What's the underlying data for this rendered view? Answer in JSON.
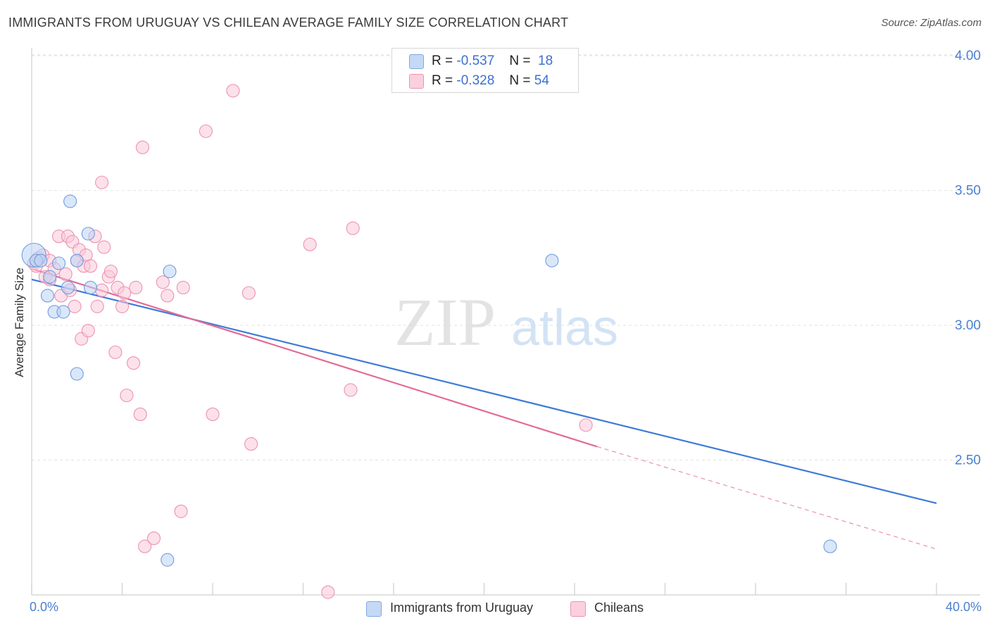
{
  "title": "IMMIGRANTS FROM URUGUAY VS CHILEAN AVERAGE FAMILY SIZE CORRELATION CHART",
  "source": "Source: ZipAtlas.com",
  "watermark": {
    "zip": "ZIP",
    "atlas": "atlas"
  },
  "legend": {
    "r_label": "R =",
    "n_label": "N =",
    "rows": [
      {
        "r": "-0.537",
        "n": "18",
        "color": "#a9c6f1"
      },
      {
        "r": "-0.328",
        "n": "54",
        "color": "#f6b6c9"
      }
    ]
  },
  "colors": {
    "blue_line": "#3d7bd8",
    "pink_line": "#e36b96",
    "blue_fill": "#a9c6f1",
    "pink_fill": "#f6b6c9",
    "axis_label": "#4a7fd0"
  },
  "chart_data": {
    "type": "scatter",
    "title": "IMMIGRANTS FROM URUGUAY VS CHILEAN AVERAGE FAMILY SIZE CORRELATION CHART",
    "xlabel": "",
    "ylabel": "Average Family Size",
    "x_tick_labels": [
      "0.0%",
      "40.0%"
    ],
    "y_tick_labels": [
      "2.50",
      "3.00",
      "3.50",
      "4.00"
    ],
    "xlim": [
      0,
      40
    ],
    "ylim": [
      2.0,
      4.05
    ],
    "y_ticks": [
      2.5,
      3.0,
      3.5,
      4.0
    ],
    "grid": true,
    "legend_position": "top-center",
    "series": [
      {
        "name": "Immigrants from Uruguay",
        "color": "#a9c6f1",
        "points": [
          [
            0.1,
            3.26
          ],
          [
            0.2,
            3.24
          ],
          [
            0.4,
            3.24
          ],
          [
            0.7,
            3.11
          ],
          [
            0.8,
            3.18
          ],
          [
            1.0,
            3.05
          ],
          [
            1.2,
            3.23
          ],
          [
            1.4,
            3.05
          ],
          [
            1.6,
            3.14
          ],
          [
            1.7,
            3.46
          ],
          [
            2.0,
            3.24
          ],
          [
            2.0,
            2.82
          ],
          [
            2.5,
            3.34
          ],
          [
            2.6,
            3.14
          ],
          [
            6.0,
            2.13
          ],
          [
            6.1,
            3.2
          ],
          [
            23.0,
            3.24
          ],
          [
            35.3,
            2.18
          ]
        ],
        "trend": {
          "x1": 0,
          "y1": 3.17,
          "x2": 40,
          "y2": 2.34
        }
      },
      {
        "name": "Chileans",
        "color": "#f6b6c9",
        "points": [
          [
            0.1,
            3.23
          ],
          [
            0.2,
            3.22
          ],
          [
            0.3,
            3.25
          ],
          [
            0.5,
            3.26
          ],
          [
            0.6,
            3.18
          ],
          [
            0.8,
            3.24
          ],
          [
            0.8,
            3.17
          ],
          [
            1.0,
            3.21
          ],
          [
            1.2,
            3.33
          ],
          [
            1.3,
            3.11
          ],
          [
            1.5,
            3.19
          ],
          [
            1.6,
            3.33
          ],
          [
            1.7,
            3.13
          ],
          [
            1.8,
            3.31
          ],
          [
            1.9,
            3.07
          ],
          [
            2.0,
            3.24
          ],
          [
            2.1,
            3.28
          ],
          [
            2.2,
            2.95
          ],
          [
            2.3,
            3.22
          ],
          [
            2.4,
            3.26
          ],
          [
            2.5,
            2.98
          ],
          [
            2.6,
            3.22
          ],
          [
            2.8,
            3.33
          ],
          [
            2.9,
            3.07
          ],
          [
            3.1,
            3.13
          ],
          [
            3.1,
            3.53
          ],
          [
            3.2,
            3.29
          ],
          [
            3.4,
            3.18
          ],
          [
            3.5,
            3.2
          ],
          [
            3.7,
            2.9
          ],
          [
            3.8,
            3.14
          ],
          [
            4.0,
            3.07
          ],
          [
            4.1,
            3.12
          ],
          [
            4.2,
            2.74
          ],
          [
            4.5,
            2.86
          ],
          [
            4.6,
            3.14
          ],
          [
            4.8,
            2.67
          ],
          [
            4.9,
            3.66
          ],
          [
            5.0,
            2.18
          ],
          [
            5.4,
            2.21
          ],
          [
            5.8,
            3.16
          ],
          [
            6.0,
            3.11
          ],
          [
            6.6,
            2.31
          ],
          [
            6.7,
            3.14
          ],
          [
            7.7,
            3.72
          ],
          [
            8.0,
            2.67
          ],
          [
            8.9,
            3.87
          ],
          [
            9.6,
            3.12
          ],
          [
            9.7,
            2.56
          ],
          [
            12.3,
            3.3
          ],
          [
            13.1,
            2.01
          ],
          [
            14.1,
            2.76
          ],
          [
            14.2,
            3.36
          ],
          [
            24.5,
            2.63
          ]
        ],
        "trend": {
          "x1": 0,
          "y1": 3.21,
          "x2": 25,
          "y2": 2.55,
          "dashed_to_x": 40,
          "dashed_to_y": 2.17
        }
      }
    ]
  }
}
